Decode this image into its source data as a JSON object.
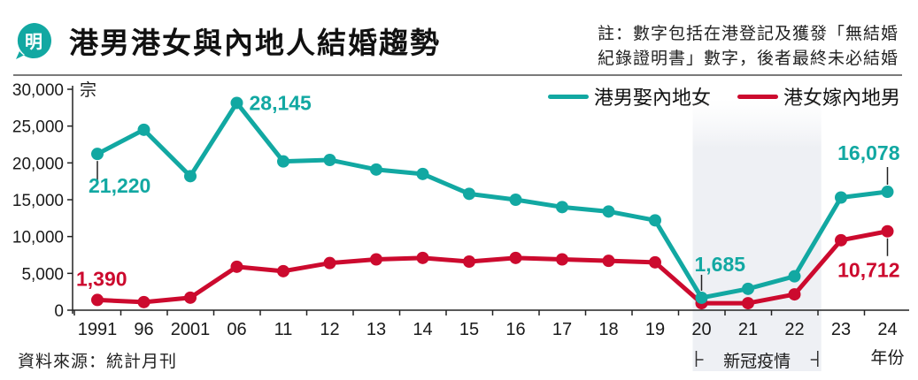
{
  "header": {
    "logo_glyph": "明",
    "title": "港男港女與內地人結婚趨勢",
    "note_line1": "註：數字包括在港登記及獲發「無結婚",
    "note_line2": "紀錄證明書」數字，後者最終未必結婚"
  },
  "legend": [
    {
      "label": "港男娶內地女",
      "color": "#12a8a2"
    },
    {
      "label": "港女嫁內地男",
      "color": "#cc0a2e"
    }
  ],
  "source": "資料來源：統計月刊",
  "chart_data": {
    "type": "line",
    "title": "港男港女與內地人結婚趨勢",
    "xlabel": "年份",
    "ylabel": "宗",
    "ylim": [
      0,
      30000
    ],
    "yticks": [
      0,
      5000,
      10000,
      15000,
      20000,
      25000,
      30000
    ],
    "ytick_labels": [
      "0",
      "5,000",
      "10,000",
      "15,000",
      "20,000",
      "25,000",
      "30,000"
    ],
    "categories": [
      "1991",
      "96",
      "2001",
      "06",
      "11",
      "12",
      "13",
      "14",
      "15",
      "16",
      "17",
      "18",
      "19",
      "20",
      "21",
      "22",
      "23",
      "24"
    ],
    "grid": false,
    "legend_position": "top-right",
    "series": [
      {
        "name": "港男娶內地女",
        "color": "#12a8a2",
        "values": [
          21220,
          24500,
          18200,
          28145,
          20200,
          20400,
          19100,
          18500,
          15800,
          15000,
          14000,
          13400,
          12200,
          1685,
          2900,
          4600,
          15300,
          16078
        ]
      },
      {
        "name": "港女嫁內地男",
        "color": "#cc0a2e",
        "values": [
          1390,
          1100,
          1700,
          5900,
          5300,
          6400,
          6900,
          7100,
          6600,
          7100,
          6900,
          6700,
          6500,
          950,
          950,
          2150,
          9500,
          10712
        ]
      }
    ],
    "annotations": [
      {
        "series": 0,
        "index": 0,
        "text": "21,220",
        "color": "#12a8a2"
      },
      {
        "series": 0,
        "index": 3,
        "text": "28,145",
        "color": "#12a8a2"
      },
      {
        "series": 0,
        "index": 13,
        "text": "1,685",
        "color": "#12a8a2"
      },
      {
        "series": 0,
        "index": 17,
        "text": "16,078",
        "color": "#12a8a2"
      },
      {
        "series": 1,
        "index": 0,
        "text": "1,390",
        "color": "#cc0a2e"
      },
      {
        "series": 1,
        "index": 17,
        "text": "10,712",
        "color": "#cc0a2e"
      }
    ],
    "highlight_period": {
      "from": "20",
      "to": "22",
      "label": "新冠疫情"
    }
  }
}
